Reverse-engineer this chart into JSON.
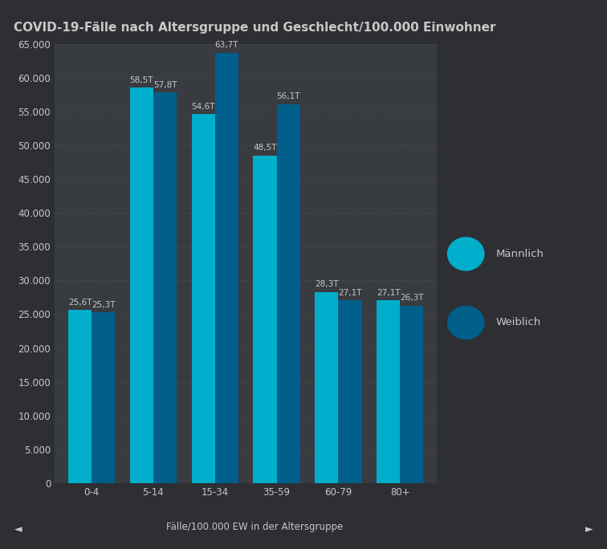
{
  "title": "COVID-19-Fälle nach Altersgruppe und Geschlecht/100.000 Einwohner",
  "categories": [
    "0-4",
    "5-14",
    "15-34",
    "35-59",
    "60-79",
    "80+"
  ],
  "maennlich": [
    25600,
    58500,
    54600,
    48500,
    28300,
    27100
  ],
  "weiblich": [
    25300,
    57800,
    63700,
    56100,
    27100,
    26300
  ],
  "maennlich_labels": [
    "25,6T",
    "58,5T",
    "54,6T",
    "48,5T",
    "28,3T",
    "27,1T"
  ],
  "weiblich_labels": [
    "25,3T",
    "57,8T",
    "63,7T",
    "56,1T",
    "27,1T",
    "26,3T"
  ],
  "color_maennlich": "#00AECC",
  "color_weiblich": "#005F8A",
  "background_color": "#2d2f33",
  "plot_bg_color": "#383b40",
  "text_color": "#c8c8c8",
  "grid_color": "#4a4a4a",
  "xlabel": "Fälle/100.000 EW in der Altersgruppe",
  "ylim": [
    0,
    65000
  ],
  "yticks": [
    0,
    5000,
    10000,
    15000,
    20000,
    25000,
    30000,
    35000,
    40000,
    45000,
    50000,
    55000,
    60000,
    65000
  ],
  "title_fontsize": 11,
  "label_fontsize": 7.5,
  "tick_fontsize": 8.5,
  "legend_fontsize": 9.5,
  "bar_width": 0.38
}
